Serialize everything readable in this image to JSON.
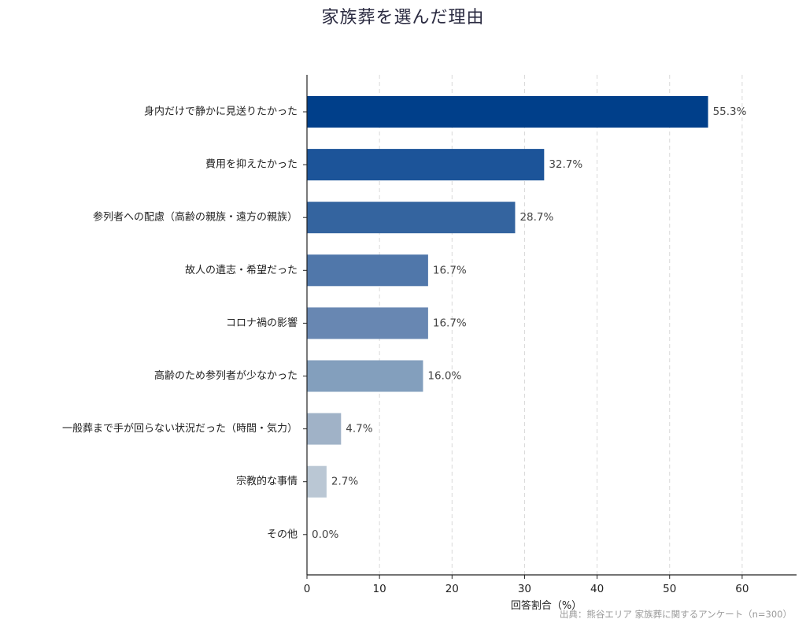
{
  "chart_data": {
    "type": "bar",
    "orientation": "horizontal",
    "title": "家族葬を選んだ理由",
    "xlabel": "回答割合（%）",
    "ylabel": "",
    "source": "出典：熊谷エリア 家族葬に関するアンケート（n=300）",
    "xlim": [
      0,
      67.5
    ],
    "xticks": [
      0,
      10,
      20,
      30,
      40,
      50,
      60
    ],
    "grid": "vertical dashed",
    "value_suffix": "%",
    "categories": [
      "身内だけで静かに見送りたかった",
      "費用を抑えたかった",
      "参列者への配慮（高齢の親族・遠方の親族）",
      "故人の遺志・希望だった",
      "コロナ禍の影響",
      "高齢のため参列者が少なかった",
      "一般葬まで手が回らない状況だった（時間・気力）",
      "宗教的な事情",
      "その他"
    ],
    "values": [
      55.3,
      32.7,
      28.7,
      16.7,
      16.7,
      16.0,
      4.7,
      2.7,
      0.0
    ],
    "colors": [
      "#003f8a",
      "#1c5499",
      "#34649f",
      "#5077aa",
      "#6887b2",
      "#839fbd",
      "#a0b2c7",
      "#bac7d4",
      "#d3dbe3"
    ]
  }
}
